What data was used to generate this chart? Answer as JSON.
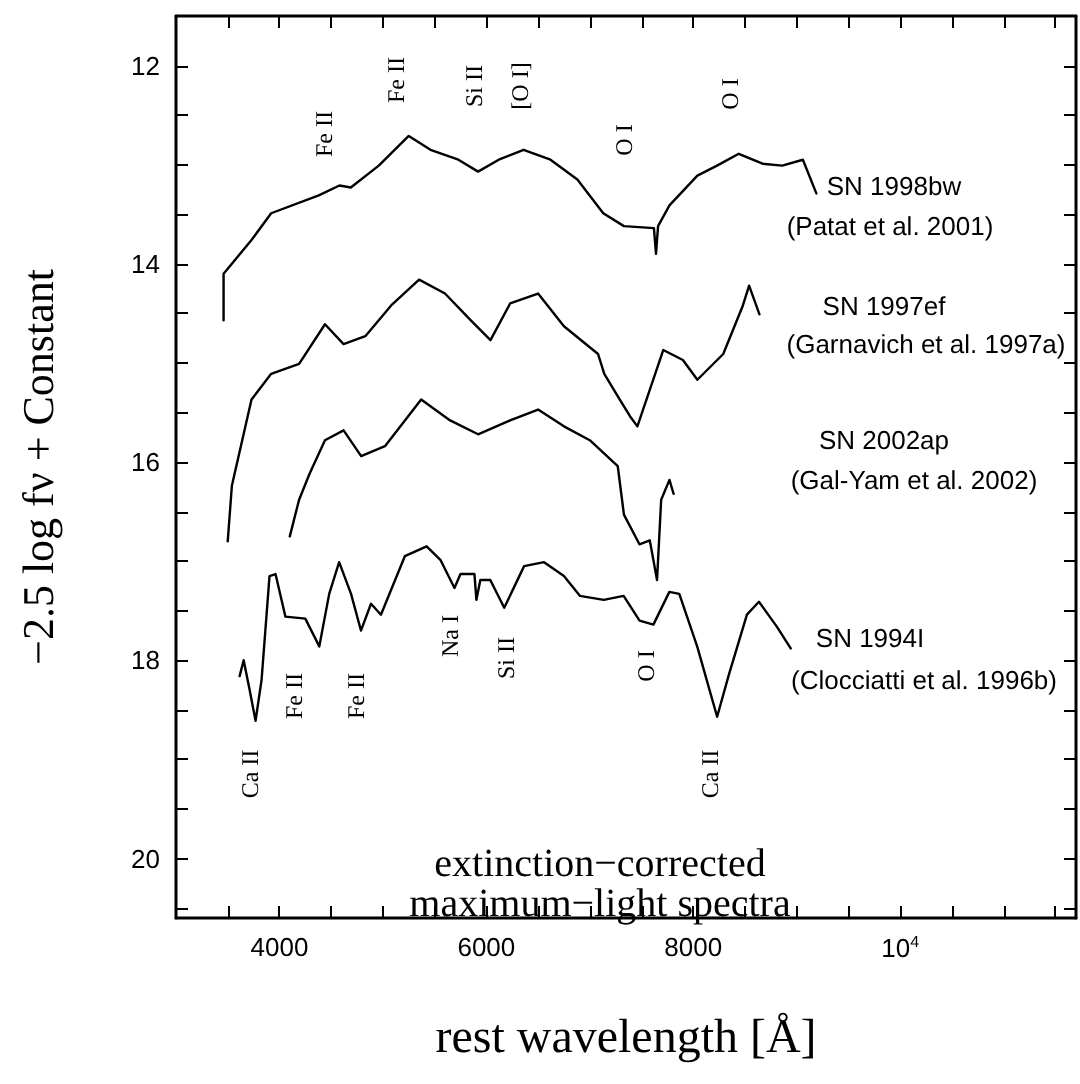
{
  "chart_data": {
    "type": "line",
    "xlabel": "rest wavelength [Å]",
    "ylabel": "−2.5 log fν + Constant",
    "xlim": [
      3000,
      11700
    ],
    "ylim": [
      20.6,
      11.5
    ],
    "xticks": [
      {
        "value": 3500,
        "label": null
      },
      4000,
      {
        "value": 4500,
        "label": null
      },
      {
        "value": 5000,
        "label": null
      },
      {
        "value": 5500,
        "label": null
      },
      6000,
      {
        "value": 6500,
        "label": null
      },
      {
        "value": 7000,
        "label": null
      },
      {
        "value": 7500,
        "label": null
      },
      8000,
      {
        "value": 8500,
        "label": null
      },
      {
        "value": 9000,
        "label": null
      },
      {
        "value": 9500,
        "label": null
      },
      {
        "value": 10000,
        "label": "10$^{4}$"
      },
      {
        "value": 10500,
        "label": null
      },
      {
        "value": 11000,
        "label": null
      },
      {
        "value": 11500,
        "label": null
      }
    ],
    "yticks": [
      12,
      {
        "value": 12.5,
        "label": null
      },
      {
        "value": 13,
        "label": null
      },
      {
        "value": 13.5,
        "label": null
      },
      14,
      {
        "value": 14.5,
        "label": null
      },
      {
        "value": 15,
        "label": null
      },
      {
        "value": 15.5,
        "label": null
      },
      16,
      {
        "value": 16.5,
        "label": null
      },
      {
        "value": 17,
        "label": null
      },
      {
        "value": 17.5,
        "label": null
      },
      18,
      {
        "value": 18.5,
        "label": null
      },
      {
        "value": 19,
        "label": null
      },
      {
        "value": 19.5,
        "label": null
      },
      20,
      {
        "value": 20.5,
        "label": null
      }
    ],
    "grid": false,
    "legend": false,
    "marker": "none",
    "line_style": "solid",
    "series": [
      {
        "name": "SN 1998bw",
        "color": "#000000",
        "x": [
          3460,
          3460,
          3730,
          3920,
          4380,
          4580,
          4690,
          4960,
          5250,
          5460,
          5730,
          5920,
          6120,
          6360,
          6620,
          6880,
          7130,
          7330,
          7620,
          7640,
          7660,
          7770,
          8040,
          8230,
          8440,
          8670,
          8860,
          9060,
          9190
        ],
        "values": [
          14.57,
          14.1,
          13.76,
          13.49,
          13.31,
          13.21,
          13.23,
          13.01,
          12.71,
          12.85,
          12.95,
          13.07,
          12.95,
          12.85,
          12.95,
          13.15,
          13.49,
          13.62,
          13.64,
          13.9,
          13.62,
          13.41,
          13.11,
          13.01,
          12.89,
          12.99,
          13.01,
          12.95,
          13.29
        ]
      },
      {
        "name": "SN 1997ef",
        "color": "#000000",
        "x": [
          3500,
          3540,
          3730,
          3920,
          4190,
          4440,
          4620,
          4830,
          5080,
          5350,
          5600,
          5850,
          6040,
          6230,
          6500,
          6750,
          7080,
          7140,
          7290,
          7390,
          7460,
          7710,
          7900,
          8040,
          8290,
          8480,
          8540,
          8640
        ],
        "values": [
          16.8,
          16.24,
          15.37,
          15.11,
          15.01,
          14.61,
          14.81,
          14.73,
          14.42,
          14.16,
          14.3,
          14.57,
          14.77,
          14.4,
          14.3,
          14.63,
          14.91,
          15.11,
          15.37,
          15.54,
          15.64,
          14.87,
          14.97,
          15.17,
          14.91,
          14.42,
          14.22,
          14.51
        ]
      },
      {
        "name": "SN 2002ap",
        "color": "#000000",
        "x": [
          4100,
          4190,
          4290,
          4440,
          4620,
          4790,
          5020,
          5370,
          5650,
          5920,
          6230,
          6500,
          6750,
          7000,
          7270,
          7330,
          7480,
          7580,
          7650,
          7690,
          7770,
          7810
        ],
        "values": [
          16.75,
          16.38,
          16.12,
          15.78,
          15.68,
          15.94,
          15.84,
          15.37,
          15.58,
          15.72,
          15.58,
          15.47,
          15.64,
          15.78,
          16.04,
          16.53,
          16.83,
          16.79,
          17.19,
          16.38,
          16.18,
          16.32
        ]
      },
      {
        "name": "SN 1994I",
        "color": "#000000",
        "x": [
          3615,
          3654,
          3712,
          3769,
          3827,
          3904,
          3962,
          4058,
          4250,
          4385,
          4481,
          4577,
          4692,
          4788,
          4885,
          4981,
          5212,
          5423,
          5558,
          5692,
          5750,
          5885,
          5904,
          5942,
          6038,
          6173,
          6365,
          6558,
          6750,
          6904,
          7135,
          7327,
          7481,
          7615,
          7769,
          7865,
          8038,
          8231,
          8346,
          8519,
          8635,
          8808,
          8942
        ],
        "values": [
          18.16,
          18.0,
          18.3,
          18.61,
          18.2,
          17.15,
          17.13,
          17.56,
          17.58,
          17.86,
          17.33,
          17.01,
          17.33,
          17.7,
          17.43,
          17.54,
          16.95,
          16.85,
          16.99,
          17.27,
          17.13,
          17.13,
          17.39,
          17.19,
          17.19,
          17.47,
          17.05,
          17.01,
          17.15,
          17.35,
          17.39,
          17.35,
          17.6,
          17.64,
          17.31,
          17.33,
          17.86,
          18.57,
          18.14,
          17.54,
          17.41,
          17.66,
          17.88
        ]
      }
    ],
    "annotations": [
      "Fe II",
      "Fe II",
      "Si II",
      "[O I]",
      "O I",
      "O I",
      "Ca II",
      "Fe II",
      "Fe II",
      "Na I",
      "Si II",
      "O I",
      "Ca II",
      "(Patat et al. 2001)",
      "(Garnavich et al. 1997a)",
      "(Gal-Yam et al. 2002)",
      "(Clocciatti et al. 1996b)",
      "extinction−corrected",
      "maximum−light spectra"
    ]
  }
}
